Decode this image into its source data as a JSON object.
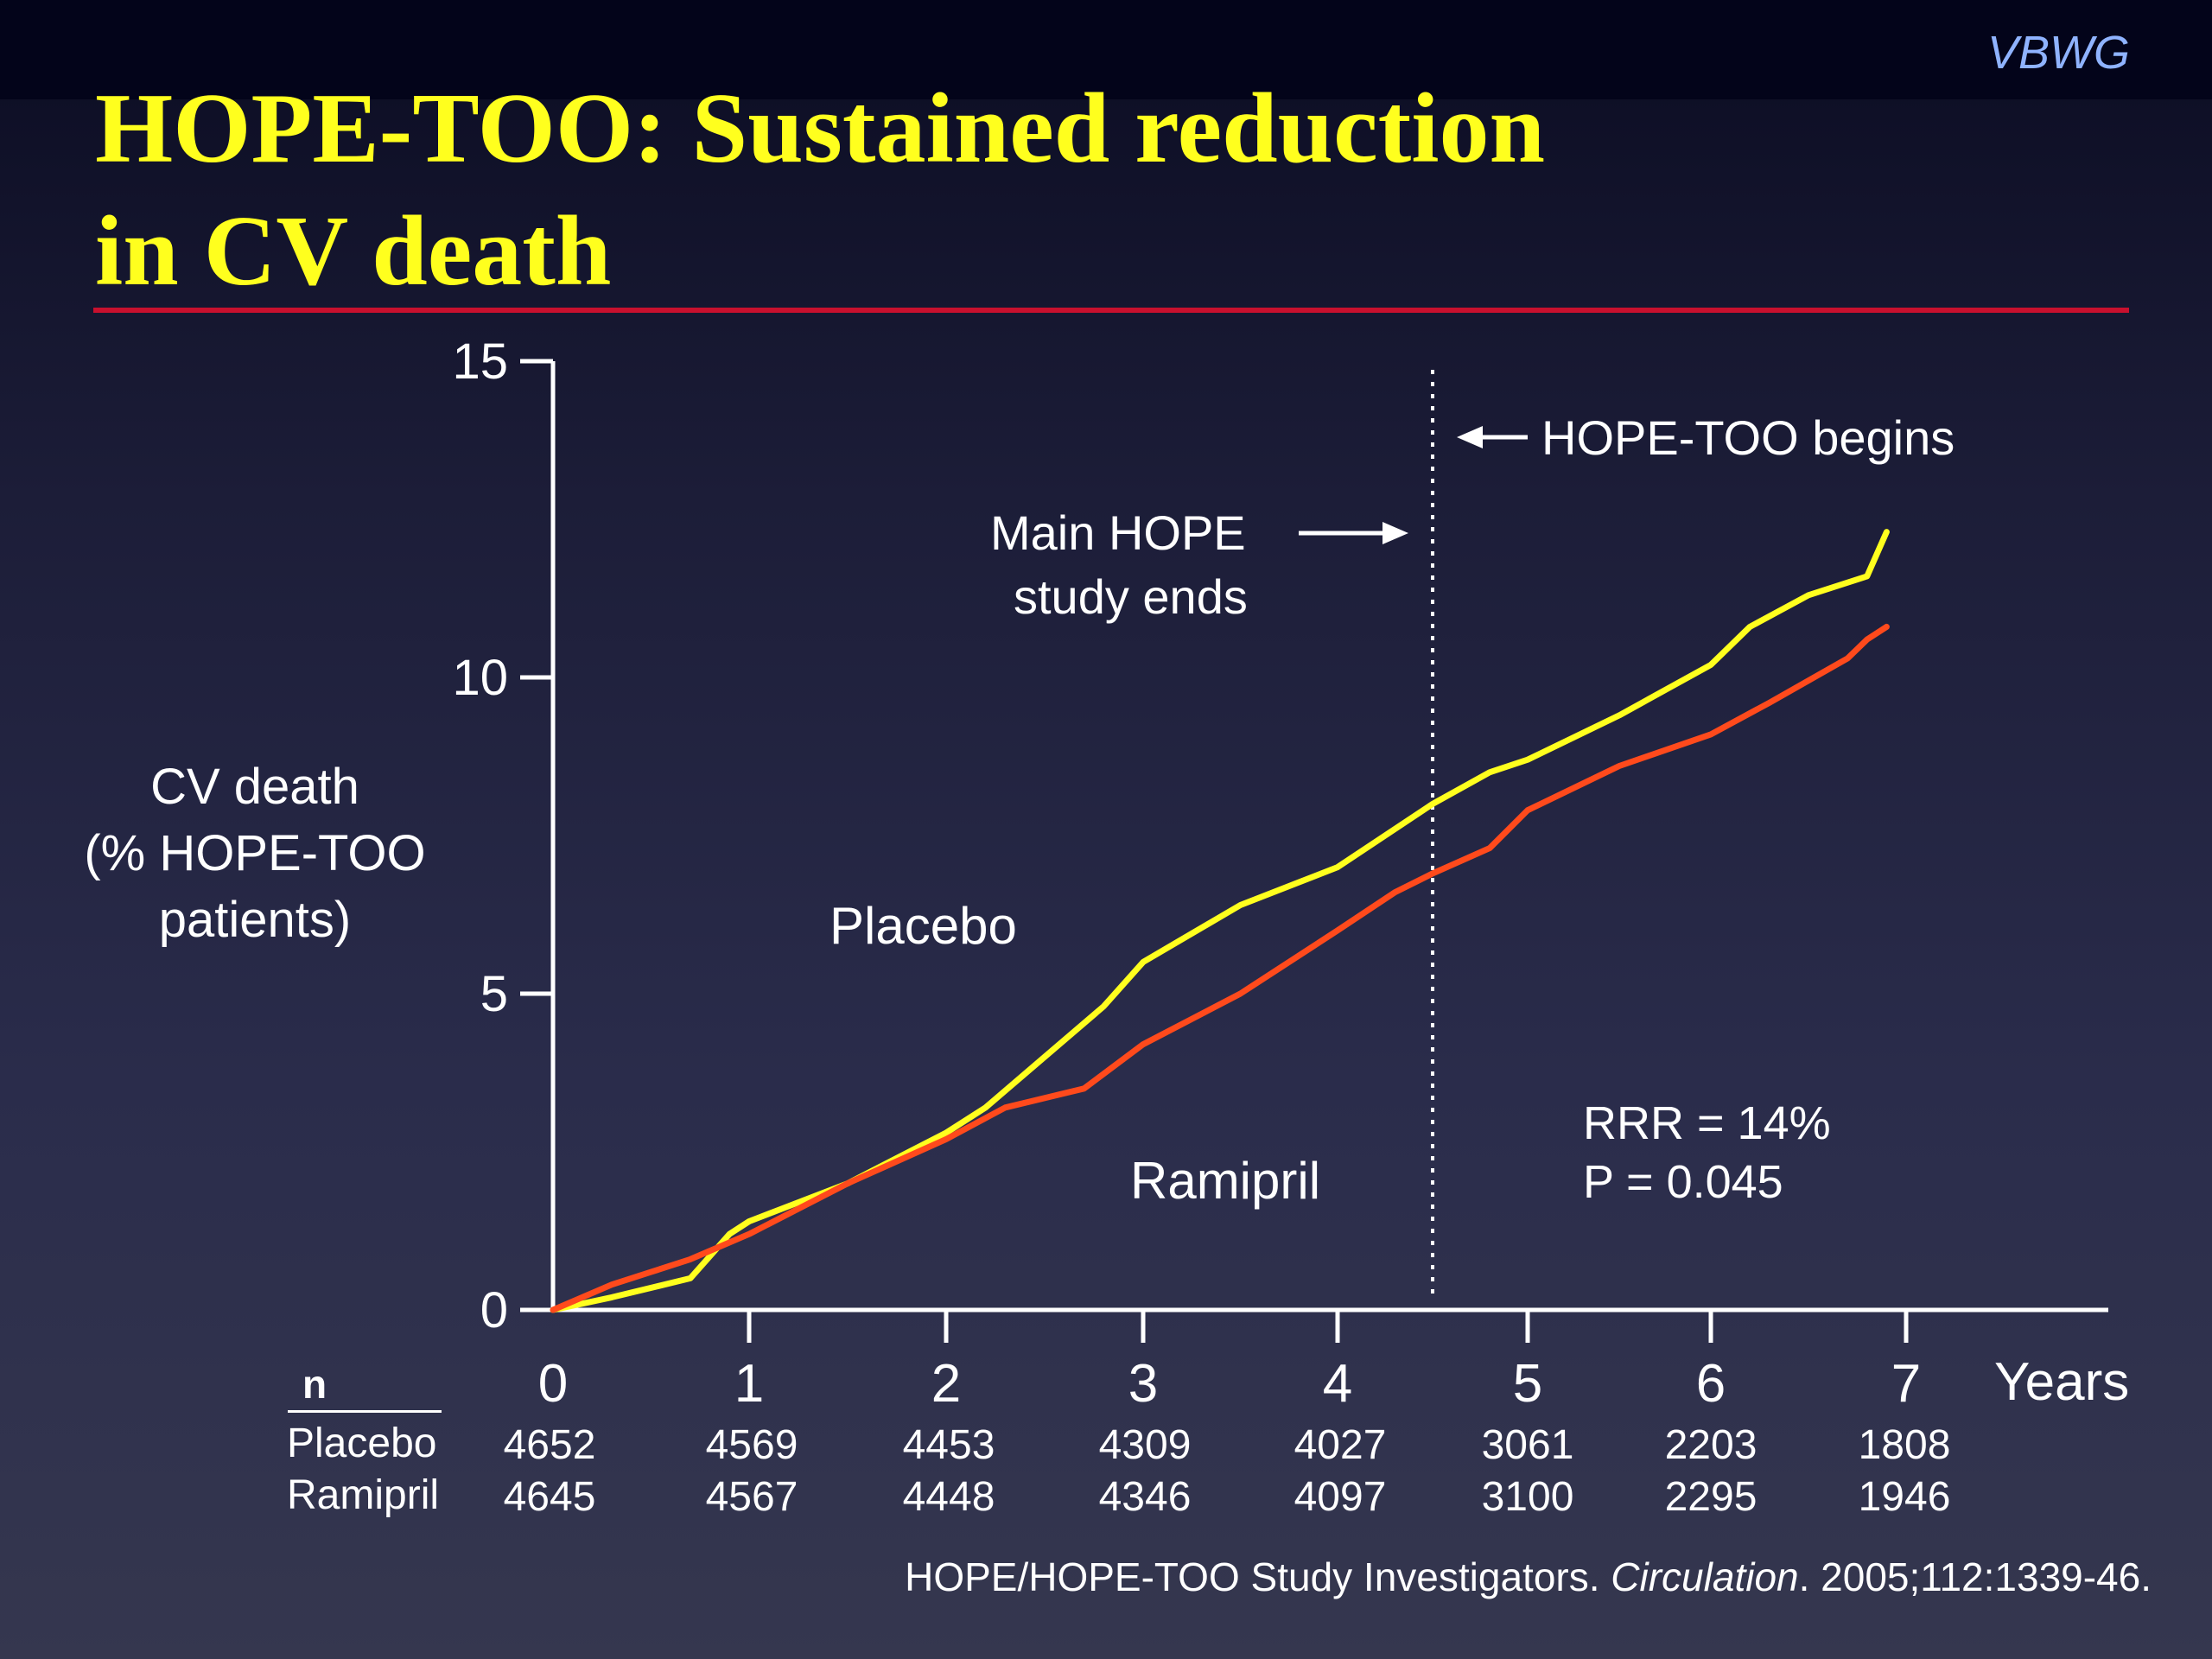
{
  "brand": "VBWG",
  "title": {
    "line1": "HOPE-TOO: Sustained reduction",
    "line2": "in CV death"
  },
  "colors": {
    "title": "#ffff1e",
    "rule": "#c8102e",
    "placebo": "#ffff1e",
    "ramipril": "#ff4a1c",
    "brand": "#8fb3ff"
  },
  "annotations": {
    "main_hope_line1": "Main HOPE",
    "main_hope_line2": "study ends",
    "hope_too_begins": "HOPE-TOO begins",
    "placebo_label": "Placebo",
    "ramipril_label": "Ramipril",
    "rrr": "RRR = 14%",
    "p_value": "P = 0.045"
  },
  "chart_data": {
    "type": "line",
    "ylabel": [
      "CV death",
      "(% HOPE-TOO",
      "patients)"
    ],
    "xlabel": "Years",
    "xlim": [
      0,
      8
    ],
    "ylim": [
      0,
      15
    ],
    "x_ticks": [
      "0",
      "1",
      "2",
      "3",
      "4",
      "5",
      "6",
      "7"
    ],
    "y_ticks": [
      "0",
      "5",
      "10",
      "15"
    ],
    "grid": false,
    "hope_too_begins_year": 4.5,
    "series": [
      {
        "name": "Placebo",
        "color": "#ffff1e",
        "x": [
          0,
          0.3,
          0.7,
          0.9,
          1.0,
          1.5,
          2.0,
          2.2,
          2.5,
          2.8,
          3.0,
          3.5,
          4.0,
          4.5,
          4.8,
          5.0,
          5.5,
          6.0,
          6.2,
          6.5,
          6.8,
          6.9
        ],
        "y": [
          0,
          0.2,
          0.5,
          1.2,
          1.4,
          2.0,
          2.8,
          3.2,
          4.0,
          4.8,
          5.5,
          6.4,
          7.0,
          8.0,
          8.5,
          8.7,
          9.4,
          10.2,
          10.8,
          11.3,
          11.6,
          12.3
        ]
      },
      {
        "name": "Ramipril",
        "color": "#ff4a1c",
        "x": [
          0,
          0.3,
          0.5,
          0.7,
          1.0,
          1.5,
          2.0,
          2.3,
          2.7,
          3.0,
          3.5,
          4.0,
          4.3,
          4.5,
          4.8,
          5.0,
          5.5,
          6.0,
          6.3,
          6.7,
          6.8,
          6.9
        ],
        "y": [
          0,
          0.4,
          0.6,
          0.8,
          1.2,
          2.0,
          2.7,
          3.2,
          3.5,
          4.2,
          5.0,
          6.0,
          6.6,
          6.9,
          7.3,
          7.9,
          8.6,
          9.1,
          9.6,
          10.3,
          10.6,
          10.8
        ]
      }
    ]
  },
  "n_table": {
    "header": "n",
    "rows": [
      {
        "label": "Placebo",
        "values": [
          "4652",
          "4569",
          "4453",
          "4309",
          "4027",
          "3061",
          "2203",
          "1808"
        ]
      },
      {
        "label": "Ramipril",
        "values": [
          "4645",
          "4567",
          "4448",
          "4346",
          "4097",
          "3100",
          "2295",
          "1946"
        ]
      }
    ]
  },
  "citation": {
    "before": "HOPE/HOPE-TOO Study Investigators. ",
    "journal": "Circulation",
    "after": ". 2005;112:1339-46."
  }
}
